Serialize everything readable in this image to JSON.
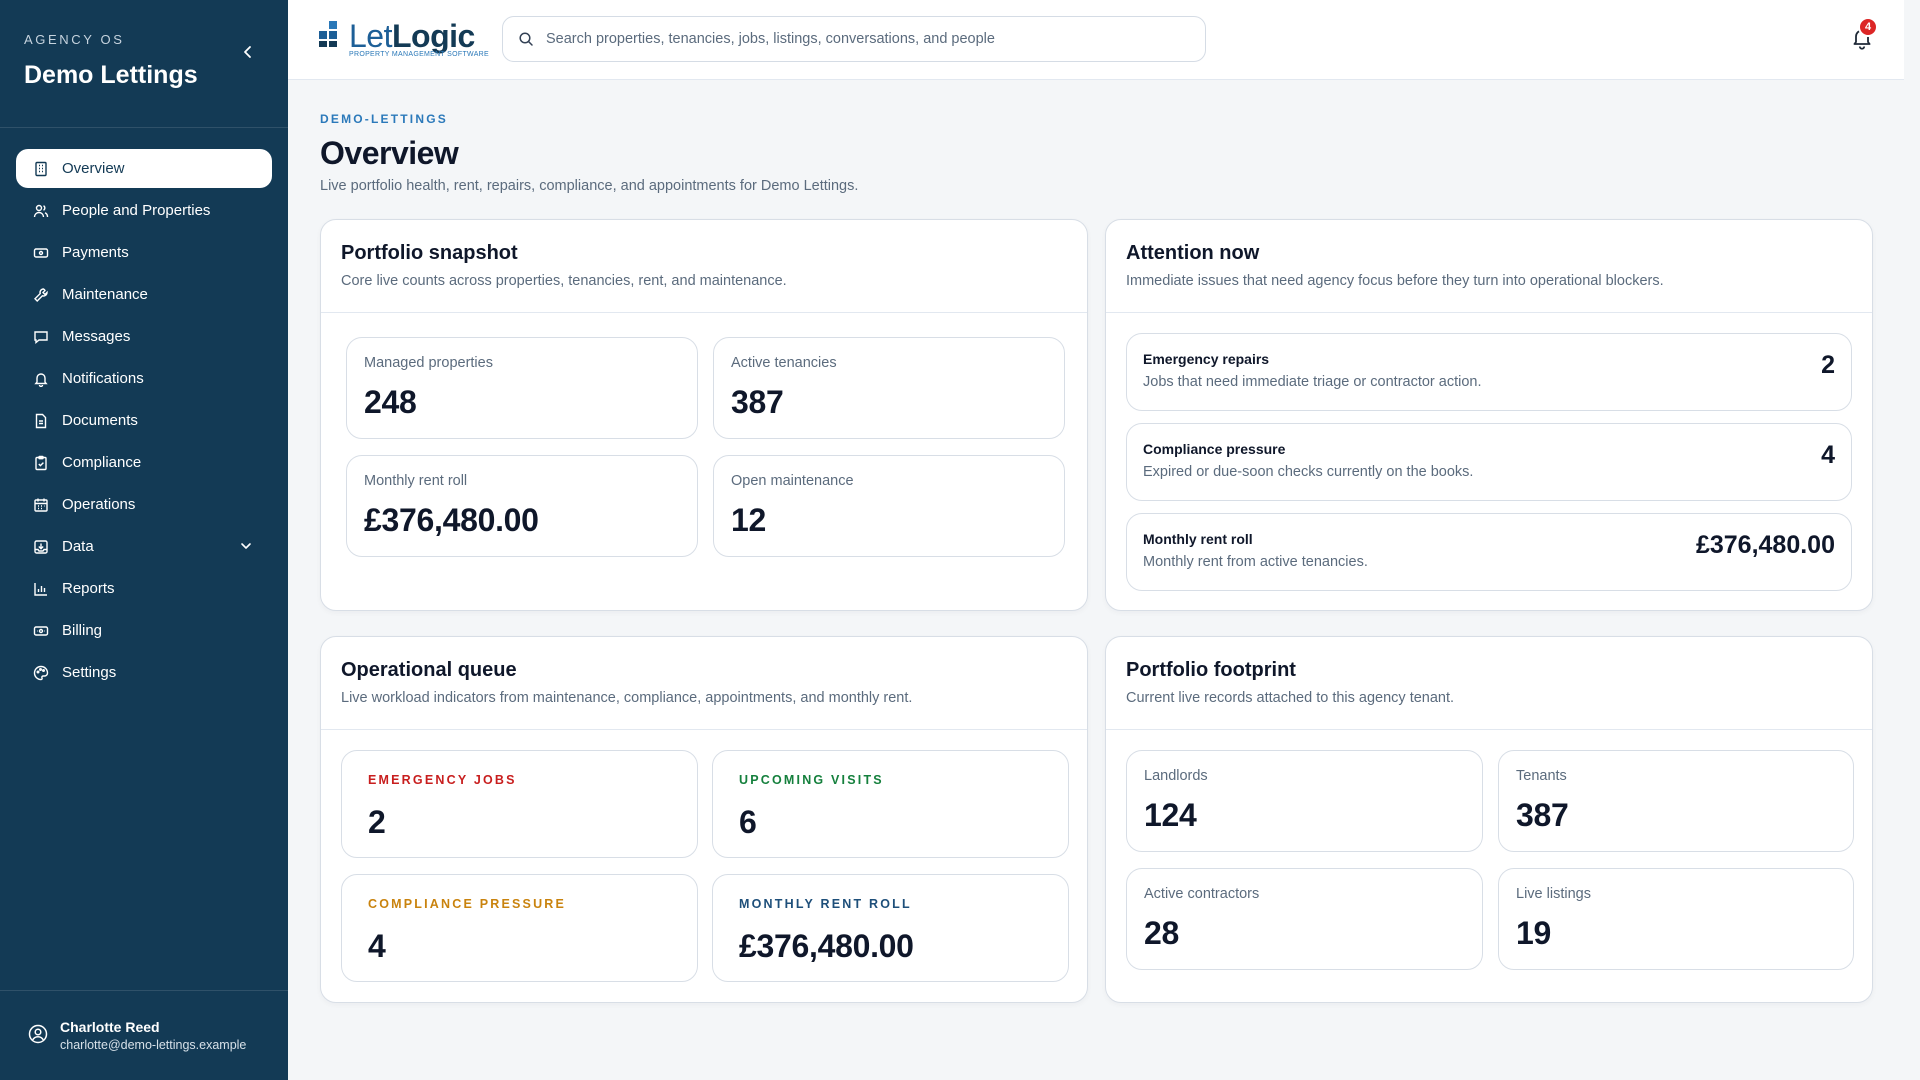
{
  "sidebar": {
    "kicker": "AGENCY OS",
    "title": "Demo Lettings",
    "items": [
      {
        "label": "Overview",
        "icon": "building-icon"
      },
      {
        "label": "People and Properties",
        "icon": "people-icon"
      },
      {
        "label": "Payments",
        "icon": "cash-icon"
      },
      {
        "label": "Maintenance",
        "icon": "wrench-icon"
      },
      {
        "label": "Messages",
        "icon": "message-icon"
      },
      {
        "label": "Notifications",
        "icon": "bell-icon"
      },
      {
        "label": "Documents",
        "icon": "document-icon"
      },
      {
        "label": "Compliance",
        "icon": "clipboard-check-icon"
      },
      {
        "label": "Operations",
        "icon": "calendar-icon"
      },
      {
        "label": "Data",
        "icon": "inbox-download-icon"
      },
      {
        "label": "Reports",
        "icon": "bar-chart-icon"
      },
      {
        "label": "Billing",
        "icon": "banknote-icon"
      },
      {
        "label": "Settings",
        "icon": "palette-icon"
      }
    ],
    "active": "Overview",
    "user": {
      "name": "Charlotte Reed",
      "email": "charlotte@demo-lettings.example"
    }
  },
  "header": {
    "logo_prefix": "Let",
    "logo_bold": "Logic",
    "logo_tagline": "PROPERTY MANAGEMENT SOFTWARE",
    "search_placeholder": "Search properties, tenancies, jobs, listings, conversations, and people",
    "notifications_count": "4"
  },
  "page": {
    "kicker": "DEMO-LETTINGS",
    "title": "Overview",
    "subtitle": "Live portfolio health, rent, repairs, compliance, and appointments for Demo Lettings."
  },
  "snapshot": {
    "title": "Portfolio snapshot",
    "subtitle": "Core live counts across properties, tenancies, rent, and maintenance.",
    "tiles": [
      {
        "label": "Managed properties",
        "value": "248"
      },
      {
        "label": "Active tenancies",
        "value": "387"
      },
      {
        "label": "Monthly rent roll",
        "value": "£376,480.00"
      },
      {
        "label": "Open maintenance",
        "value": "12"
      }
    ]
  },
  "attention": {
    "title": "Attention now",
    "subtitle": "Immediate issues that need agency focus before they turn into operational blockers.",
    "rows": [
      {
        "title": "Emergency repairs",
        "desc": "Jobs that need immediate triage or contractor action.",
        "value": "2"
      },
      {
        "title": "Compliance pressure",
        "desc": "Expired or due-soon checks currently on the books.",
        "value": "4"
      },
      {
        "title": "Monthly rent roll",
        "desc": "Monthly rent from active tenancies.",
        "value": "£376,480.00"
      }
    ]
  },
  "queue": {
    "title": "Operational queue",
    "subtitle": "Live workload indicators from maintenance, compliance, appointments, and monthly rent.",
    "tiles": [
      {
        "label": "EMERGENCY JOBS",
        "value": "2",
        "color": "#c81e1e"
      },
      {
        "label": "UPCOMING VISITS",
        "value": "6",
        "color": "#15803d"
      },
      {
        "label": "COMPLIANCE PRESSURE",
        "value": "4",
        "color": "#c9830e"
      },
      {
        "label": "MONTHLY RENT ROLL",
        "value": "£376,480.00",
        "color": "#1e4f7a"
      }
    ]
  },
  "footprint": {
    "title": "Portfolio footprint",
    "subtitle": "Current live records attached to this agency tenant.",
    "tiles": [
      {
        "label": "Landlords",
        "value": "124"
      },
      {
        "label": "Tenants",
        "value": "387"
      },
      {
        "label": "Active contractors",
        "value": "28"
      },
      {
        "label": "Live listings",
        "value": "19"
      }
    ]
  },
  "colors": {
    "sidebar": "#133a55",
    "accent": "#2b79ba",
    "badge": "#dc2626"
  }
}
